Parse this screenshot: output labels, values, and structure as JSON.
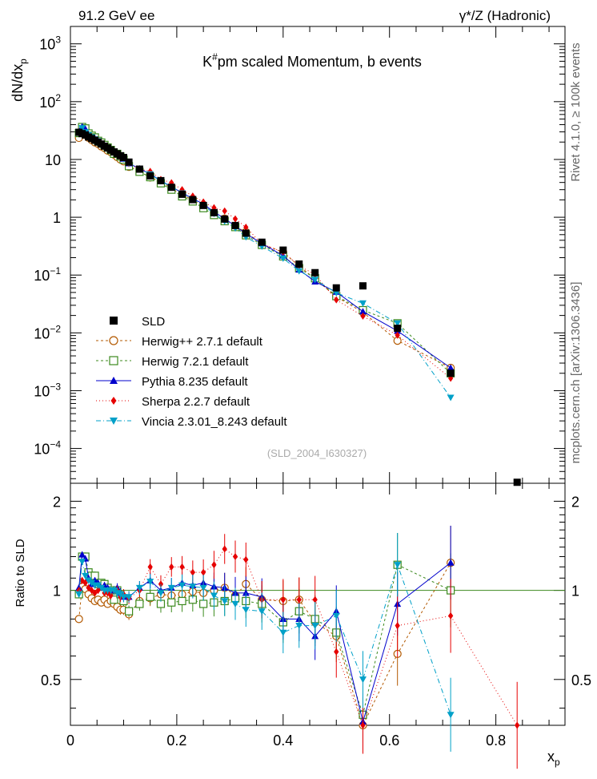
{
  "header": {
    "left": "91.2 GeV ee",
    "right": "γ*/Z (Hadronic)",
    "side_top": "Rivet 4.1.0, ≥ 100k events",
    "side_bottom": "mcplots.cern.ch [arXiv:1306.3436]"
  },
  "chart_data": {
    "type": "scatter",
    "title_main": "K",
    "title_sup": "#",
    "title_rest": "pm scaled Momentum, b events",
    "analysis_id": "(SLD_2004_I630327)",
    "ylabel_main": "dN/dx",
    "ylabel_sub": "p",
    "xlabel_main": "x",
    "xlabel_sub": "p",
    "ratio_ylabel": "Ratio to SLD",
    "xlim": [
      0,
      0.93
    ],
    "ylim": [
      2.5e-05,
      2000
    ],
    "ratio_ylim": [
      0.35,
      2.3
    ],
    "x_ticks": [
      "0",
      "0.2",
      "0.4",
      "0.6",
      "0.8"
    ],
    "x_tick_values": [
      0,
      0.2,
      0.4,
      0.6,
      0.8
    ],
    "ratio_ticks": [
      "0.5",
      "1",
      "2"
    ],
    "ratio_tick_values": [
      0.5,
      1,
      2
    ],
    "y_ticks": [
      {
        "v": 0.0001,
        "base": "10",
        "exp": "−4"
      },
      {
        "v": 0.001,
        "base": "10",
        "exp": "−3"
      },
      {
        "v": 0.01,
        "base": "10",
        "exp": "−2"
      },
      {
        "v": 0.1,
        "base": "10",
        "exp": "−1"
      },
      {
        "v": 1,
        "base": "1",
        "exp": ""
      },
      {
        "v": 10,
        "base": "10",
        "exp": ""
      },
      {
        "v": 100,
        "base": "10",
        "exp": "2"
      },
      {
        "v": 1000,
        "base": "10",
        "exp": "3"
      }
    ],
    "x": [
      0.016,
      0.022,
      0.028,
      0.034,
      0.04,
      0.046,
      0.052,
      0.058,
      0.064,
      0.07,
      0.076,
      0.082,
      0.088,
      0.094,
      0.1,
      0.11,
      0.13,
      0.15,
      0.17,
      0.19,
      0.21,
      0.23,
      0.25,
      0.27,
      0.29,
      0.31,
      0.33,
      0.36,
      0.4,
      0.43,
      0.46,
      0.5,
      0.55,
      0.615,
      0.715,
      0.84
    ],
    "series": [
      {
        "name": "SLD",
        "key": "sld",
        "color": "#000000",
        "marker": "square",
        "dash": "",
        "values": [
          29.5,
          28,
          26.5,
          24.5,
          23,
          21.5,
          20,
          18.5,
          17,
          15.8,
          14.6,
          13.5,
          12.5,
          11.6,
          10.8,
          9,
          6.8,
          5.2,
          4.3,
          3.3,
          2.5,
          2.02,
          1.6,
          1.2,
          0.93,
          0.72,
          0.53,
          0.37,
          0.27,
          0.155,
          0.11,
          0.06,
          0.065,
          0.012,
          0.002,
          2.6e-05
        ]
      },
      {
        "name": "Herwig++ 2.7.1 default",
        "key": "herwigpp",
        "color": "#b35900",
        "marker": "circle-open",
        "dash": "3,3",
        "ratio": [
          0.8,
          1.03,
          1.01,
          0.97,
          0.94,
          0.92,
          0.93,
          0.91,
          0.93,
          0.9,
          0.92,
          0.9,
          0.88,
          0.86,
          0.86,
          0.83,
          0.92,
          0.94,
          0.97,
          0.96,
          0.97,
          0.99,
          0.98,
          1.0,
          1.02,
          0.96,
          1.05,
          0.93,
          0.92,
          0.93,
          0.78,
          0.7,
          0.35,
          0.61,
          1.24,
          null
        ]
      },
      {
        "name": "Herwig 7.2.1 default",
        "key": "herwig7",
        "color": "#3c8a1e",
        "marker": "square-open",
        "dash": "3,3",
        "ratio": [
          0.97,
          1.3,
          1.3,
          1.15,
          1.12,
          1.12,
          1.05,
          1.06,
          1.05,
          1.02,
          1.0,
          0.93,
          1.0,
          0.97,
          0.92,
          0.85,
          0.9,
          0.95,
          0.9,
          0.91,
          0.92,
          0.93,
          0.9,
          0.91,
          0.92,
          0.94,
          0.92,
          0.9,
          0.78,
          0.85,
          0.8,
          0.72,
          0.38,
          1.22,
          1.0,
          null
        ]
      },
      {
        "name": "Pythia 8.235 default",
        "key": "pythia",
        "color": "#0000cc",
        "marker": "triangle",
        "dash": "",
        "ratio": [
          1.02,
          1.32,
          1.28,
          1.1,
          1.05,
          1.08,
          1.06,
          1.02,
          1.04,
          1.02,
          1.0,
          1.0,
          1.02,
          0.98,
          0.95,
          0.95,
          1.02,
          1.08,
          1.0,
          1.02,
          1.06,
          1.04,
          1.06,
          1.03,
          1.02,
          0.98,
          0.98,
          0.95,
          0.8,
          0.8,
          0.7,
          0.85,
          0.36,
          0.9,
          1.24,
          null
        ]
      },
      {
        "name": "Sherpa 2.2.7 default",
        "key": "sherpa",
        "color": "#e60000",
        "marker": "diamond",
        "dash": "1,3",
        "ratio": [
          1.0,
          1.08,
          1.06,
          1.02,
          1.0,
          0.98,
          1.0,
          1.02,
          0.98,
          0.98,
          0.96,
          1.0,
          1.0,
          0.95,
          0.97,
          0.94,
          1.0,
          1.2,
          1.05,
          1.2,
          1.2,
          1.15,
          1.15,
          1.22,
          1.38,
          1.3,
          1.27,
          0.93,
          0.93,
          0.93,
          0.93,
          0.62,
          0.3,
          0.76,
          0.82,
          0.3
        ]
      },
      {
        "name": "Vincia 2.3.01_8.243 default",
        "key": "vincia",
        "color": "#00a0c8",
        "marker": "triangle-down",
        "dash": "6,3,1,3",
        "ratio": [
          0.97,
          1.25,
          1.12,
          1.08,
          1.06,
          1.04,
          1.04,
          1.02,
          1.0,
          1.0,
          1.0,
          1.0,
          0.98,
          0.97,
          0.95,
          0.95,
          1.02,
          1.07,
          0.98,
          1.02,
          1.04,
          1.03,
          1.02,
          0.96,
          0.92,
          0.9,
          0.86,
          0.85,
          0.72,
          0.76,
          0.76,
          0.82,
          0.5,
          1.22,
          0.38,
          null
        ]
      }
    ]
  }
}
